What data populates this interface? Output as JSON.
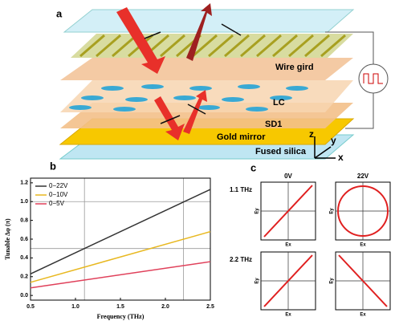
{
  "panel_a": {
    "label": "a",
    "layers": [
      "Wire gird",
      "LC",
      "SD1",
      "Gold mirror",
      "Fused silica"
    ],
    "axes": [
      "z",
      "y",
      "x"
    ]
  },
  "chart_data": {
    "type": "line",
    "panel_label": "b",
    "x_label": "Frequency (THz)",
    "y_label": "Tunable Δφ (π)",
    "x": [
      0.5,
      2.5
    ],
    "series": [
      {
        "name": "0−22V",
        "color": "#333333",
        "values": [
          0.23,
          1.13
        ]
      },
      {
        "name": "0−10V",
        "color": "#e8b820",
        "values": [
          0.14,
          0.68
        ]
      },
      {
        "name": "0−5V",
        "color": "#e0405a",
        "values": [
          0.08,
          0.36
        ]
      }
    ],
    "xlim": [
      0.5,
      2.5
    ],
    "ylim": [
      -0.05,
      1.25
    ],
    "xticks": [
      0.5,
      {
        "value": 1,
        "label": "1.0"
      },
      1.5,
      {
        "value": 2,
        "label": "2.0"
      },
      2.5
    ],
    "yticks": [
      {
        "value": 0,
        "label": "0.0"
      },
      0.2,
      0.4,
      0.6,
      0.8,
      {
        "value": 1,
        "label": "1.0"
      },
      1.2
    ],
    "reference_lines": {
      "x": [
        1.1,
        2.2
      ],
      "y": [
        0.5,
        1.0
      ]
    },
    "legend": "upper-left"
  },
  "panel_c": {
    "label": "c",
    "columns": [
      "0V",
      "22V"
    ],
    "rows": [
      "1.1 THz",
      "2.2 THz"
    ],
    "x_label": "Ex",
    "y_label": "Ey"
  }
}
